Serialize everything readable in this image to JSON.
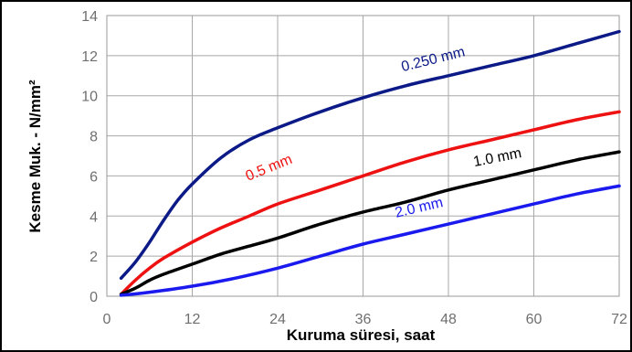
{
  "chart_data": {
    "type": "line",
    "title": "",
    "xlabel": "Kuruma süresi, saat",
    "ylabel": "Kesme Muk. - N/mm²",
    "xlim": [
      0,
      72
    ],
    "ylim": [
      0,
      14
    ],
    "xticks": [
      0,
      12,
      24,
      36,
      48,
      60,
      72
    ],
    "yticks": [
      0,
      2,
      4,
      6,
      8,
      10,
      12,
      14
    ],
    "xtick_labels": [
      "0",
      "12",
      "24",
      "36",
      "48",
      "60",
      "72"
    ],
    "ytick_labels": [
      "0",
      "2",
      "4",
      "6",
      "8",
      "10",
      "12",
      "14"
    ],
    "grid": true,
    "legend": "none",
    "series": [
      {
        "name": "0.250 mm",
        "color": "#0b1a86",
        "x": [
          2,
          4,
          6,
          8,
          10,
          12,
          16,
          20,
          24,
          30,
          36,
          42,
          48,
          54,
          60,
          66,
          72
        ],
        "y": [
          0.9,
          1.7,
          2.7,
          3.8,
          4.8,
          5.6,
          6.9,
          7.8,
          8.4,
          9.2,
          9.9,
          10.5,
          11.0,
          11.5,
          12.0,
          12.6,
          13.2
        ]
      },
      {
        "name": "0.5 mm",
        "color": "#ee1111",
        "x": [
          2,
          4,
          6,
          8,
          12,
          16,
          20,
          24,
          30,
          36,
          42,
          48,
          54,
          60,
          66,
          72
        ],
        "y": [
          0.1,
          0.8,
          1.4,
          1.9,
          2.7,
          3.4,
          4.0,
          4.6,
          5.3,
          6.0,
          6.7,
          7.3,
          7.8,
          8.3,
          8.8,
          9.2
        ]
      },
      {
        "name": "1.0 mm",
        "color": "#000000",
        "x": [
          2,
          4,
          6,
          8,
          12,
          16,
          20,
          24,
          30,
          36,
          42,
          48,
          54,
          60,
          66,
          72
        ],
        "y": [
          0.1,
          0.4,
          0.8,
          1.1,
          1.6,
          2.1,
          2.5,
          2.9,
          3.6,
          4.2,
          4.7,
          5.3,
          5.8,
          6.3,
          6.8,
          7.2
        ]
      },
      {
        "name": "2.0 mm",
        "color": "#1a1aee",
        "x": [
          2,
          6,
          12,
          18,
          24,
          30,
          36,
          42,
          48,
          54,
          60,
          66,
          72
        ],
        "y": [
          0.05,
          0.2,
          0.5,
          0.9,
          1.4,
          2.0,
          2.6,
          3.1,
          3.6,
          4.1,
          4.6,
          5.1,
          5.5
        ]
      }
    ],
    "annotations": [
      {
        "text": "0.250 mm",
        "series": 0,
        "x": 46,
        "y": 11.6,
        "angle": -14
      },
      {
        "text": "0.5 mm",
        "series": 1,
        "x": 23,
        "y": 6.2,
        "angle": -22
      },
      {
        "text": "1.0 mm",
        "series": 2,
        "x": 55,
        "y": 6.7,
        "angle": -11
      },
      {
        "text": "2.0 mm",
        "series": 3,
        "x": 44,
        "y": 4.2,
        "angle": -13
      }
    ]
  }
}
